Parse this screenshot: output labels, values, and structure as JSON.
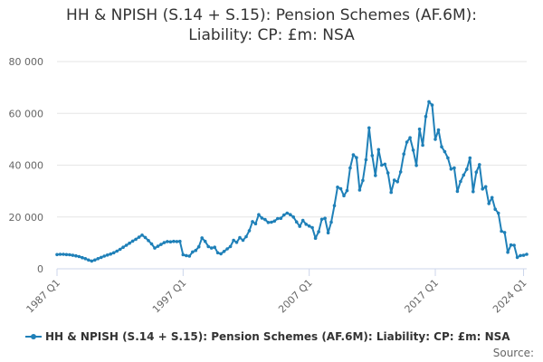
{
  "chart_data": {
    "type": "line",
    "title_lines": [
      "HH & NPISH (S.14 + S.15): Pension Schemes (AF.6M):",
      "Liability: CP: £m: NSA"
    ],
    "y_ticks": [
      0,
      20000,
      40000,
      60000,
      80000
    ],
    "y_tick_labels": [
      "0",
      "20 000",
      "40 000",
      "60 000",
      "80 000"
    ],
    "ylim": [
      0,
      80000
    ],
    "x_ticks": [
      1987.0,
      1997.0,
      2007.0,
      2017.0,
      2024.0
    ],
    "x_tick_labels": [
      "1987 Q1",
      "1997 Q1",
      "2007 Q1",
      "2017 Q1",
      "2024 Q1"
    ],
    "xlim": [
      1987.0,
      2024.25
    ],
    "grid": "horizontal",
    "legend_position": "bottom",
    "series": [
      {
        "name": "HH & NPISH (S.14 + S.15): Pension Schemes (AF.6M): Liability: CP: £m: NSA",
        "color": "#1f80b8",
        "points": [
          [
            1987.0,
            5500
          ],
          [
            1987.25,
            5600
          ],
          [
            1987.5,
            5600
          ],
          [
            1987.75,
            5500
          ],
          [
            1988.0,
            5400
          ],
          [
            1988.25,
            5200
          ],
          [
            1988.5,
            5000
          ],
          [
            1988.75,
            4700
          ],
          [
            1989.0,
            4300
          ],
          [
            1989.25,
            3900
          ],
          [
            1989.5,
            3400
          ],
          [
            1989.75,
            3000
          ],
          [
            1990.0,
            3400
          ],
          [
            1990.25,
            3900
          ],
          [
            1990.5,
            4400
          ],
          [
            1990.75,
            4900
          ],
          [
            1991.0,
            5300
          ],
          [
            1991.25,
            5700
          ],
          [
            1991.5,
            6200
          ],
          [
            1991.75,
            6800
          ],
          [
            1992.0,
            7500
          ],
          [
            1992.25,
            8300
          ],
          [
            1992.5,
            9100
          ],
          [
            1992.75,
            9900
          ],
          [
            1993.0,
            10700
          ],
          [
            1993.25,
            11400
          ],
          [
            1993.5,
            12200
          ],
          [
            1993.75,
            13000
          ],
          [
            1994.0,
            12100
          ],
          [
            1994.25,
            10900
          ],
          [
            1994.5,
            9600
          ],
          [
            1994.75,
            8000
          ],
          [
            1995.0,
            8700
          ],
          [
            1995.25,
            9400
          ],
          [
            1995.5,
            10100
          ],
          [
            1995.75,
            10500
          ],
          [
            1996.0,
            10400
          ],
          [
            1996.25,
            10600
          ],
          [
            1996.5,
            10500
          ],
          [
            1996.75,
            10600
          ],
          [
            1997.0,
            5400
          ],
          [
            1997.25,
            5100
          ],
          [
            1997.5,
            4900
          ],
          [
            1997.75,
            6500
          ],
          [
            1998.0,
            7100
          ],
          [
            1998.25,
            8500
          ],
          [
            1998.5,
            11900
          ],
          [
            1998.75,
            10600
          ],
          [
            1999.0,
            8600
          ],
          [
            1999.25,
            8000
          ],
          [
            1999.5,
            8300
          ],
          [
            1999.75,
            6200
          ],
          [
            2000.0,
            5800
          ],
          [
            2000.25,
            6700
          ],
          [
            2000.5,
            7700
          ],
          [
            2000.75,
            8600
          ],
          [
            2001.0,
            11000
          ],
          [
            2001.25,
            10200
          ],
          [
            2001.5,
            12000
          ],
          [
            2001.75,
            11000
          ],
          [
            2002.0,
            12400
          ],
          [
            2002.25,
            14700
          ],
          [
            2002.5,
            18200
          ],
          [
            2002.75,
            17400
          ],
          [
            2003.0,
            20900
          ],
          [
            2003.25,
            19600
          ],
          [
            2003.5,
            19000
          ],
          [
            2003.75,
            17900
          ],
          [
            2004.0,
            18000
          ],
          [
            2004.25,
            18400
          ],
          [
            2004.5,
            19400
          ],
          [
            2004.75,
            19500
          ],
          [
            2005.0,
            20800
          ],
          [
            2005.25,
            21500
          ],
          [
            2005.5,
            20900
          ],
          [
            2005.75,
            20000
          ],
          [
            2006.0,
            18100
          ],
          [
            2006.25,
            16400
          ],
          [
            2006.5,
            18700
          ],
          [
            2006.75,
            17200
          ],
          [
            2007.0,
            16500
          ],
          [
            2007.25,
            15900
          ],
          [
            2007.5,
            11800
          ],
          [
            2007.75,
            14300
          ],
          [
            2008.0,
            19100
          ],
          [
            2008.25,
            19500
          ],
          [
            2008.5,
            13900
          ],
          [
            2008.75,
            18000
          ],
          [
            2009.0,
            24400
          ],
          [
            2009.25,
            31500
          ],
          [
            2009.5,
            30900
          ],
          [
            2009.75,
            28200
          ],
          [
            2010.0,
            30200
          ],
          [
            2010.25,
            38900
          ],
          [
            2010.5,
            44000
          ],
          [
            2010.75,
            42900
          ],
          [
            2011.0,
            30400
          ],
          [
            2011.25,
            34100
          ],
          [
            2011.5,
            42100
          ],
          [
            2011.75,
            54400
          ],
          [
            2012.0,
            43700
          ],
          [
            2012.25,
            36000
          ],
          [
            2012.5,
            46000
          ],
          [
            2012.75,
            40000
          ],
          [
            2013.0,
            40400
          ],
          [
            2013.25,
            37000
          ],
          [
            2013.5,
            29500
          ],
          [
            2013.75,
            34200
          ],
          [
            2014.0,
            33600
          ],
          [
            2014.25,
            37400
          ],
          [
            2014.5,
            44300
          ],
          [
            2014.75,
            48900
          ],
          [
            2015.0,
            50600
          ],
          [
            2015.25,
            45800
          ],
          [
            2015.5,
            39900
          ],
          [
            2015.75,
            53900
          ],
          [
            2016.0,
            47700
          ],
          [
            2016.25,
            58800
          ],
          [
            2016.5,
            64500
          ],
          [
            2016.75,
            63200
          ],
          [
            2017.0,
            50000
          ],
          [
            2017.25,
            53600
          ],
          [
            2017.5,
            47100
          ],
          [
            2017.75,
            45200
          ],
          [
            2018.0,
            42800
          ],
          [
            2018.25,
            38500
          ],
          [
            2018.5,
            38900
          ],
          [
            2018.75,
            29900
          ],
          [
            2019.0,
            33700
          ],
          [
            2019.25,
            36200
          ],
          [
            2019.5,
            38400
          ],
          [
            2019.75,
            42800
          ],
          [
            2020.0,
            29800
          ],
          [
            2020.25,
            37300
          ],
          [
            2020.5,
            40200
          ],
          [
            2020.75,
            30800
          ],
          [
            2021.0,
            31700
          ],
          [
            2021.25,
            25200
          ],
          [
            2021.5,
            27500
          ],
          [
            2021.75,
            23000
          ],
          [
            2022.0,
            21500
          ],
          [
            2022.25,
            14500
          ],
          [
            2022.5,
            14000
          ],
          [
            2022.75,
            6400
          ],
          [
            2023.0,
            9200
          ],
          [
            2023.25,
            9100
          ],
          [
            2023.5,
            4400
          ],
          [
            2023.75,
            5100
          ],
          [
            2024.0,
            5200
          ],
          [
            2024.25,
            5600
          ]
        ]
      }
    ]
  },
  "credits": "Source:"
}
